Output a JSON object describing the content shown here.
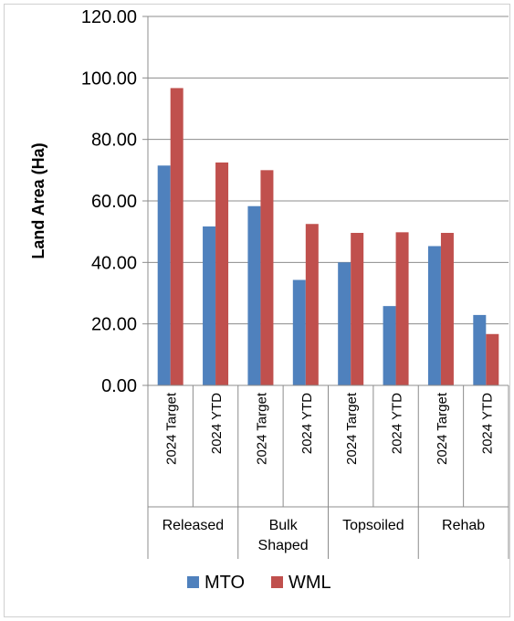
{
  "chart_data": {
    "type": "bar",
    "title": "",
    "xlabel": "",
    "ylabel": "Land Area (Ha)",
    "ylim": [
      0,
      120
    ],
    "yticks": [
      "0.00",
      "20.00",
      "40.00",
      "60.00",
      "80.00",
      "100.00",
      "120.00"
    ],
    "groups": [
      {
        "label": "Released",
        "lines": [
          "Released"
        ],
        "categories": [
          "2024 Target",
          "2024 YTD"
        ]
      },
      {
        "label": "Bulk Shaped",
        "lines": [
          "Bulk",
          "Shaped"
        ],
        "categories": [
          "2024 Target",
          "2024 YTD"
        ]
      },
      {
        "label": "Topsoiled",
        "lines": [
          "Topsoiled"
        ],
        "categories": [
          "2024 Target",
          "2024 YTD"
        ]
      },
      {
        "label": "Rehab",
        "lines": [
          "Rehab"
        ],
        "categories": [
          "2024 Target",
          "2024 YTD"
        ]
      }
    ],
    "categories": [
      "2024 Target",
      "2024 YTD",
      "2024 Target",
      "2024 YTD",
      "2024 Target",
      "2024 YTD",
      "2024 Target",
      "2024 YTD"
    ],
    "series": [
      {
        "name": "MTO",
        "color": "#4F81BD",
        "values": [
          71.5,
          51.7,
          58.3,
          34.3,
          40.0,
          25.8,
          45.3,
          22.9
        ]
      },
      {
        "name": "WML",
        "color": "#C0504D",
        "values": [
          96.7,
          72.5,
          70.0,
          52.5,
          49.6,
          49.8,
          49.6,
          16.7
        ]
      }
    ],
    "grid": true,
    "legend": "bottom"
  }
}
